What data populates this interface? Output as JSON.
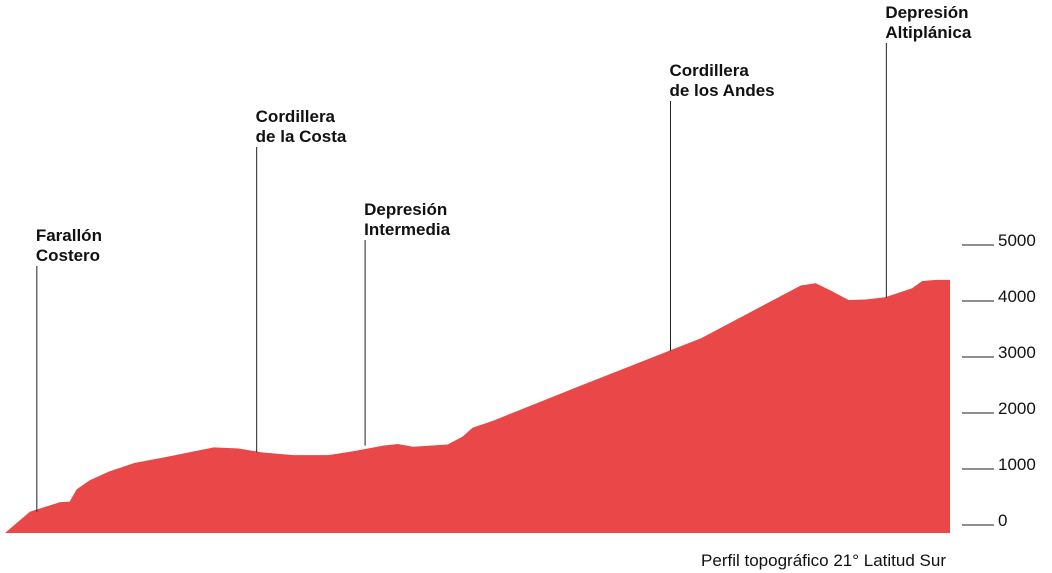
{
  "chart_data": {
    "type": "area",
    "caption": "Perfil topográfico 21° Latitud Sur",
    "ylim": [
      0,
      5000
    ],
    "y_ticks": [
      "5000",
      "4000",
      "3000",
      "2000",
      "1000",
      "0"
    ],
    "y_tick_values": [
      5000,
      4000,
      3000,
      2000,
      1000,
      0
    ],
    "fill_color": "#ea4748",
    "grid": false,
    "x": [
      0,
      25,
      55,
      65,
      72,
      85,
      105,
      130,
      160,
      210,
      235,
      258,
      290,
      325,
      350,
      380,
      395,
      410,
      445,
      460,
      470,
      490,
      580,
      700,
      800,
      815,
      830,
      848,
      865,
      885,
      900,
      912,
      922,
      936,
      950
    ],
    "elevation": [
      0,
      380,
      550,
      560,
      780,
      940,
      1100,
      1250,
      1350,
      1530,
      1510,
      1440,
      1390,
      1390,
      1460,
      1560,
      1590,
      1540,
      1580,
      1720,
      1880,
      2000,
      2640,
      3480,
      4420,
      4460,
      4330,
      4160,
      4170,
      4210,
      4300,
      4370,
      4500,
      4520,
      4520
    ],
    "annotations": [
      {
        "lines": [
          "Farallón",
          "Costero"
        ],
        "x": 32,
        "elevation": 380
      },
      {
        "lines": [
          "Cordillera",
          "de la Costa"
        ],
        "x": 253,
        "elevation": 1440
      },
      {
        "lines": [
          "Depresión",
          "Intermedia"
        ],
        "x": 362,
        "elevation": 1560
      },
      {
        "lines": [
          "Cordillera",
          "de los Andes"
        ],
        "x": 669,
        "elevation": 3250
      },
      {
        "lines": [
          "Depresión",
          "Altiplánica"
        ],
        "x": 886,
        "elevation": 4200
      }
    ]
  }
}
